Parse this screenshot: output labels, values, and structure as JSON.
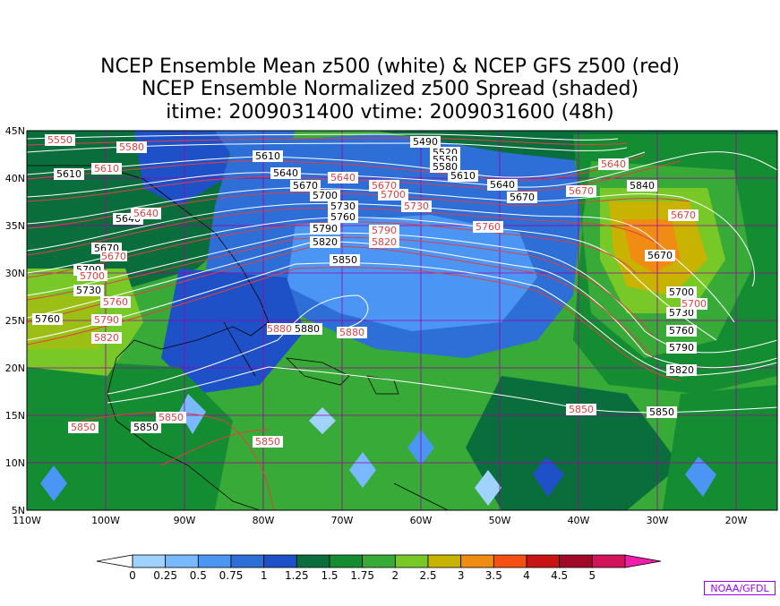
{
  "title": {
    "line1": "NCEP Ensemble Mean z500 (white) & NCEP GFS z500 (red)",
    "line2": "NCEP Ensemble Normalized z500 Spread (shaded)",
    "line3": "itime: 2009031400    vtime: 2009031600 (48h)"
  },
  "axes": {
    "lat_labels": [
      "45N",
      "40N",
      "35N",
      "30N",
      "25N",
      "20N",
      "15N",
      "10N",
      "5N"
    ],
    "lon_labels": [
      "110W",
      "100W",
      "90W",
      "80W",
      "70W",
      "60W",
      "50W",
      "40W",
      "30W",
      "20W"
    ]
  },
  "colorbar": {
    "labels": [
      "0",
      "0.25",
      "0.5",
      "0.75",
      "1",
      "1.25",
      "1.5",
      "1.75",
      "2",
      "2.5",
      "3",
      "3.5",
      "4",
      "4.5",
      "5"
    ],
    "colors": [
      "#a0d2ff",
      "#78b9ff",
      "#4b96f5",
      "#2d6ed7",
      "#1e50c8",
      "#0a6e3c",
      "#148c32",
      "#37aa37",
      "#78c828",
      "#c8b400",
      "#f08c14",
      "#f55014",
      "#c81414",
      "#a00a28",
      "#d2145a"
    ],
    "under_color": "#ffffff",
    "over_color": "#f01eaa"
  },
  "contours": {
    "white_labels": [
      "5490",
      "5520",
      "5550",
      "5580",
      "5610",
      "5640",
      "5670",
      "5700",
      "5730",
      "5760",
      "5790",
      "5820",
      "5850",
      "5880"
    ],
    "red_labels": [
      "5550",
      "5580",
      "5610",
      "5640",
      "5670",
      "5700",
      "5730",
      "5760",
      "5790",
      "5820",
      "5850",
      "5880"
    ],
    "white_color": "#ffffff",
    "red_color": "#e04040"
  },
  "credit": "NOAA/GFDL"
}
